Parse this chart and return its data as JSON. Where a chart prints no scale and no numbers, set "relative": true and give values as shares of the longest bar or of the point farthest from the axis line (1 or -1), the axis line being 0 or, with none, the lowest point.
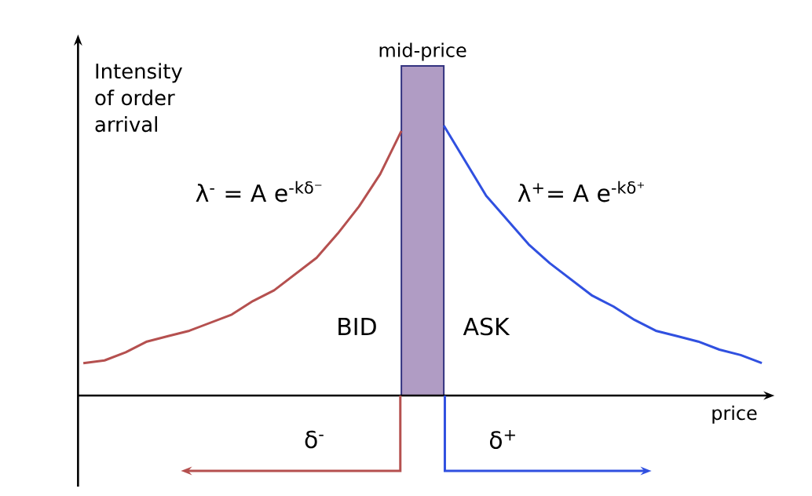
{
  "chart_data": {
    "type": "line",
    "relative": true,
    "ylabel": "Intensity of order arrival",
    "xlabel": "price",
    "categories": [
      null,
      null,
      null,
      null,
      null,
      null,
      null,
      null,
      null,
      null,
      null,
      null,
      null,
      null,
      null,
      null,
      null,
      null,
      null,
      null,
      null,
      null,
      null,
      null,
      null,
      null,
      null,
      null,
      null,
      null,
      null,
      null,
      null
    ],
    "series": [
      {
        "color": "#b5504f",
        "values": [
          0.12,
          0.13,
          0.16,
          0.2,
          0.22,
          0.24,
          0.27,
          0.3,
          0.35,
          0.39,
          0.45,
          0.51,
          0.6,
          0.7,
          0.82,
          0.98,
          null,
          null,
          null,
          null,
          null,
          null,
          null,
          null,
          null,
          null,
          null,
          null,
          null,
          null,
          null,
          null,
          null
        ]
      },
      {
        "color": "#3050e0",
        "values": [
          null,
          null,
          null,
          null,
          null,
          null,
          null,
          null,
          null,
          null,
          null,
          null,
          null,
          null,
          null,
          null,
          null,
          1,
          0.87,
          0.74,
          0.65,
          0.56,
          0.49,
          0.43,
          0.37,
          0.33,
          0.28,
          0.24,
          0.22,
          0.2,
          0.17,
          0.15,
          0.12
        ]
      }
    ],
    "annotations": [
      "λ$^{-}$ = A e$^{-kδ⁻}$",
      "λ$^{+}$= A e$^{-kδ⁺}$",
      "BID",
      "ASK",
      "δ$^{-}$",
      "δ$^{+}$",
      "mid-price"
    ]
  }
}
